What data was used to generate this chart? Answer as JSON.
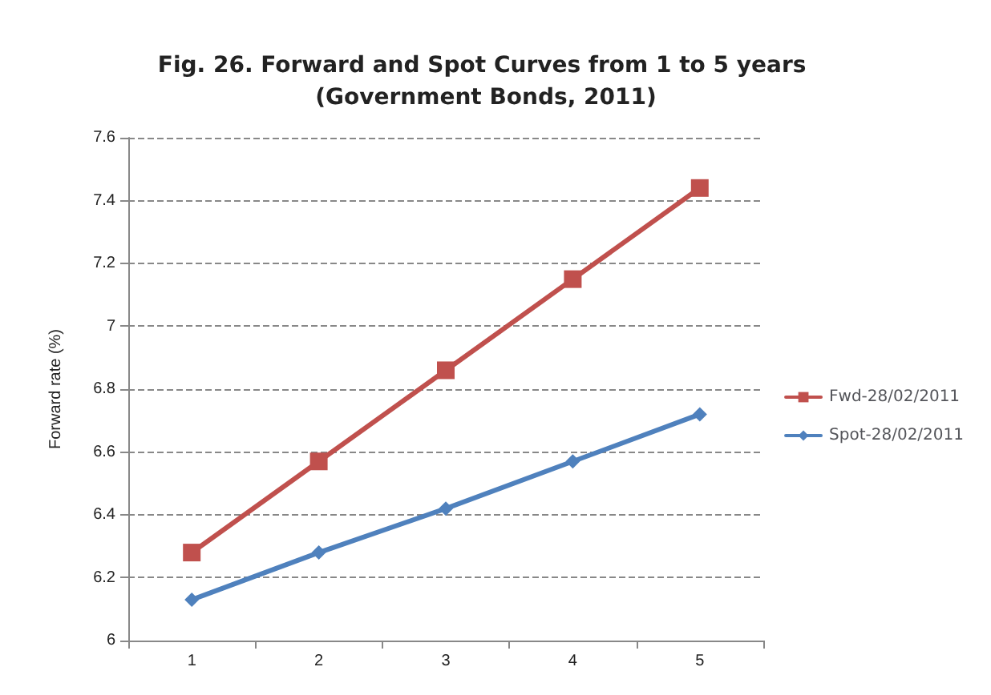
{
  "chart_data": {
    "type": "line",
    "title": "Fig. 26. Forward and Spot Curves from 1 to 5 years (Government Bonds, 2011)",
    "ylabel": "Forward rate (%)",
    "categories": [
      "1",
      "2",
      "3",
      "4",
      "5"
    ],
    "series": [
      {
        "name": "Fwd-28/02/2011",
        "color": "#c0504d",
        "marker": "square",
        "values": [
          6.28,
          6.57,
          6.86,
          7.15,
          7.44
        ]
      },
      {
        "name": "Spot-28/02/2011",
        "color": "#4f81bd",
        "marker": "diamond",
        "values": [
          6.13,
          6.28,
          6.42,
          6.57,
          6.72
        ]
      }
    ],
    "ylim": [
      6,
      7.6
    ],
    "yticks": [
      6,
      6.2,
      6.4,
      6.6,
      6.8,
      7,
      7.2,
      7.4,
      7.6
    ],
    "grid": "y",
    "legend": "right",
    "line_style": "solid"
  }
}
